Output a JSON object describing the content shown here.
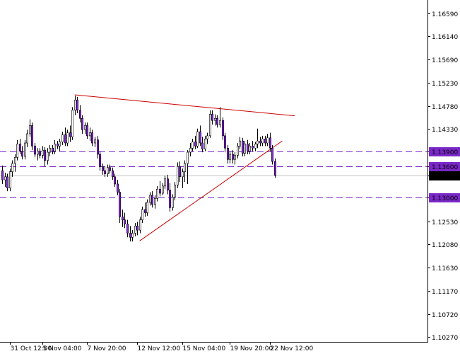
{
  "chart_data": {
    "type": "candlestick",
    "title": "",
    "xlabel": "",
    "ylabel": "",
    "ylim": [
      1.1018,
      1.1685
    ],
    "y_ticks": [
      "1.16590",
      "1.16140",
      "1.15690",
      "1.15230",
      "1.14780",
      "1.14330",
      "1.13900",
      "1.13600",
      "1.13432",
      "1.13000",
      "1.12530",
      "1.12080",
      "1.11630",
      "1.11170",
      "1.10720",
      "1.10270"
    ],
    "x_ticks": [
      "31 Oct 12:00",
      "5 Nov 04:00",
      "7 Nov 20:00",
      "12 Nov 12:00",
      "15 Nov 04:00",
      "19 Nov 20:00",
      "22 Nov 12:00"
    ],
    "x_tick_bars": [
      3,
      16,
      34,
      54,
      72,
      91,
      107
    ],
    "bar_count": 116,
    "horizontal_levels": [
      {
        "label": "1.13900",
        "value": 1.139,
        "color": "#7a28c8",
        "style": "dashed"
      },
      {
        "label": "1.13600",
        "value": 1.136,
        "color": "#7a28c8",
        "style": "dashed"
      },
      {
        "label": "1.13000",
        "value": 1.13,
        "color": "#7a28c8",
        "style": "dashed"
      }
    ],
    "current_price": {
      "label": "1.13432",
      "value": 1.13432,
      "color": "#c0c0c0"
    },
    "trendlines": [
      {
        "from": [
          29,
          1.15
        ],
        "to": [
          117,
          1.1459
        ],
        "color": "#cc0000"
      },
      {
        "from": [
          55,
          1.1215
        ],
        "to": [
          112,
          1.141
        ],
        "color": "#cc0000"
      }
    ],
    "colors": {
      "bull": "#ffffff",
      "bear": "#8a2be2",
      "wick": "#000000",
      "level_label_bg": "#7a28c8",
      "price_label_bg": "#000000"
    },
    "ohlc": [
      [
        1.1352,
        1.1362,
        1.1326,
        1.1334
      ],
      [
        1.1334,
        1.1348,
        1.132,
        1.134
      ],
      [
        1.134,
        1.1346,
        1.1312,
        1.1318
      ],
      [
        1.1318,
        1.1356,
        1.1312,
        1.135
      ],
      [
        1.135,
        1.1372,
        1.134,
        1.1366
      ],
      [
        1.1366,
        1.1384,
        1.135,
        1.1378
      ],
      [
        1.1378,
        1.1412,
        1.1372,
        1.1404
      ],
      [
        1.1404,
        1.1414,
        1.1384,
        1.139
      ],
      [
        1.139,
        1.14,
        1.1374,
        1.138
      ],
      [
        1.138,
        1.1412,
        1.1374,
        1.1406
      ],
      [
        1.1406,
        1.1432,
        1.1398,
        1.1424
      ],
      [
        1.1424,
        1.1452,
        1.1418,
        1.144
      ],
      [
        1.144,
        1.1446,
        1.1392,
        1.14
      ],
      [
        1.14,
        1.1406,
        1.1378,
        1.1384
      ],
      [
        1.1384,
        1.1396,
        1.1372,
        1.139
      ],
      [
        1.139,
        1.1396,
        1.1376,
        1.1382
      ],
      [
        1.1382,
        1.14,
        1.1376,
        1.1392
      ],
      [
        1.1392,
        1.1398,
        1.136,
        1.1372
      ],
      [
        1.1372,
        1.1396,
        1.1364,
        1.1388
      ],
      [
        1.1388,
        1.1402,
        1.138,
        1.1396
      ],
      [
        1.1396,
        1.1402,
        1.1384,
        1.139
      ],
      [
        1.139,
        1.1412,
        1.1384,
        1.1404
      ],
      [
        1.1404,
        1.141,
        1.1394,
        1.14
      ],
      [
        1.14,
        1.1414,
        1.139,
        1.1408
      ],
      [
        1.1408,
        1.1428,
        1.1402,
        1.1422
      ],
      [
        1.1422,
        1.1436,
        1.14,
        1.1406
      ],
      [
        1.1406,
        1.1432,
        1.14,
        1.1426
      ],
      [
        1.1426,
        1.144,
        1.1408,
        1.1418
      ],
      [
        1.1418,
        1.1476,
        1.1412,
        1.147
      ],
      [
        1.147,
        1.1498,
        1.146,
        1.149
      ],
      [
        1.149,
        1.1496,
        1.1464,
        1.147
      ],
      [
        1.147,
        1.148,
        1.1446,
        1.1454
      ],
      [
        1.1454,
        1.146,
        1.1424,
        1.1432
      ],
      [
        1.1432,
        1.1446,
        1.1424,
        1.144
      ],
      [
        1.144,
        1.1446,
        1.1414,
        1.142
      ],
      [
        1.142,
        1.1436,
        1.141,
        1.1426
      ],
      [
        1.1426,
        1.1432,
        1.14,
        1.1406
      ],
      [
        1.1406,
        1.1418,
        1.1398,
        1.1412
      ],
      [
        1.1412,
        1.142,
        1.1376,
        1.1384
      ],
      [
        1.1384,
        1.139,
        1.1352,
        1.136
      ],
      [
        1.136,
        1.1366,
        1.1344,
        1.1352
      ],
      [
        1.1352,
        1.136,
        1.134,
        1.1346
      ],
      [
        1.1346,
        1.1364,
        1.134,
        1.1358
      ],
      [
        1.1358,
        1.1364,
        1.1346,
        1.1352
      ],
      [
        1.1352,
        1.1358,
        1.1334,
        1.134
      ],
      [
        1.134,
        1.1346,
        1.132,
        1.1326
      ],
      [
        1.1326,
        1.1334,
        1.1304,
        1.131
      ],
      [
        1.131,
        1.1316,
        1.125,
        1.1262
      ],
      [
        1.1262,
        1.1276,
        1.1242,
        1.1256
      ],
      [
        1.1256,
        1.127,
        1.124,
        1.1248
      ],
      [
        1.1248,
        1.1256,
        1.1222,
        1.123
      ],
      [
        1.123,
        1.1244,
        1.1214,
        1.1222
      ],
      [
        1.1222,
        1.1236,
        1.1214,
        1.123
      ],
      [
        1.123,
        1.125,
        1.1224,
        1.1244
      ],
      [
        1.1244,
        1.1252,
        1.1226,
        1.1236
      ],
      [
        1.1236,
        1.1262,
        1.123,
        1.1256
      ],
      [
        1.1256,
        1.1282,
        1.125,
        1.1276
      ],
      [
        1.1276,
        1.129,
        1.1262,
        1.127
      ],
      [
        1.127,
        1.1296,
        1.1264,
        1.129
      ],
      [
        1.129,
        1.131,
        1.1284,
        1.1304
      ],
      [
        1.1304,
        1.1312,
        1.128,
        1.1286
      ],
      [
        1.1286,
        1.1304,
        1.1278,
        1.1298
      ],
      [
        1.1298,
        1.1322,
        1.1292,
        1.1316
      ],
      [
        1.1316,
        1.1332,
        1.1302,
        1.1308
      ],
      [
        1.1308,
        1.1328,
        1.1304,
        1.1322
      ],
      [
        1.1322,
        1.1342,
        1.1316,
        1.1336
      ],
      [
        1.1336,
        1.1344,
        1.1306,
        1.1314
      ],
      [
        1.1314,
        1.1328,
        1.1272,
        1.128
      ],
      [
        1.128,
        1.1306,
        1.1274,
        1.13
      ],
      [
        1.13,
        1.133,
        1.1294,
        1.1324
      ],
      [
        1.1324,
        1.1368,
        1.1318,
        1.136
      ],
      [
        1.136,
        1.137,
        1.133,
        1.134
      ],
      [
        1.134,
        1.1356,
        1.1318,
        1.135
      ],
      [
        1.135,
        1.1372,
        1.133,
        1.1366
      ],
      [
        1.1366,
        1.1392,
        1.1326,
        1.1388
      ],
      [
        1.1388,
        1.1406,
        1.138,
        1.1396
      ],
      [
        1.1396,
        1.1414,
        1.139,
        1.1408
      ],
      [
        1.1408,
        1.142,
        1.1394,
        1.14
      ],
      [
        1.14,
        1.1434,
        1.1396,
        1.1428
      ],
      [
        1.1428,
        1.144,
        1.14,
        1.1406
      ],
      [
        1.1406,
        1.1418,
        1.1388,
        1.1394
      ],
      [
        1.1394,
        1.142,
        1.139,
        1.1414
      ],
      [
        1.1414,
        1.1426,
        1.1404,
        1.142
      ],
      [
        1.142,
        1.147,
        1.1416,
        1.1462
      ],
      [
        1.1462,
        1.147,
        1.1442,
        1.145
      ],
      [
        1.145,
        1.1462,
        1.144,
        1.1454
      ],
      [
        1.1454,
        1.146,
        1.1436,
        1.1442
      ],
      [
        1.1442,
        1.1476,
        1.1436,
        1.145
      ],
      [
        1.145,
        1.1456,
        1.1412,
        1.142
      ],
      [
        1.142,
        1.1426,
        1.1388,
        1.1396
      ],
      [
        1.1396,
        1.1402,
        1.1366,
        1.1374
      ],
      [
        1.1374,
        1.139,
        1.1366,
        1.1384
      ],
      [
        1.1384,
        1.1392,
        1.1366,
        1.1374
      ],
      [
        1.1374,
        1.1388,
        1.1364,
        1.1382
      ],
      [
        1.1382,
        1.1406,
        1.1376,
        1.14
      ],
      [
        1.14,
        1.1418,
        1.1394,
        1.141
      ],
      [
        1.141,
        1.1416,
        1.138,
        1.1386
      ],
      [
        1.1386,
        1.141,
        1.138,
        1.1404
      ],
      [
        1.1404,
        1.1412,
        1.1384,
        1.139
      ],
      [
        1.139,
        1.1406,
        1.1384,
        1.14
      ],
      [
        1.14,
        1.141,
        1.139,
        1.1396
      ],
      [
        1.1396,
        1.1408,
        1.139,
        1.1404
      ],
      [
        1.1404,
        1.1434,
        1.1396,
        1.141
      ],
      [
        1.141,
        1.1418,
        1.14,
        1.1406
      ],
      [
        1.1406,
        1.142,
        1.14,
        1.1414
      ],
      [
        1.1414,
        1.142,
        1.14,
        1.1406
      ],
      [
        1.1406,
        1.1424,
        1.14,
        1.1416
      ],
      [
        1.1416,
        1.1426,
        1.139,
        1.1396
      ],
      [
        1.1396,
        1.1402,
        1.1364,
        1.137
      ],
      [
        1.137,
        1.1376,
        1.1338,
        1.1343
      ]
    ]
  }
}
